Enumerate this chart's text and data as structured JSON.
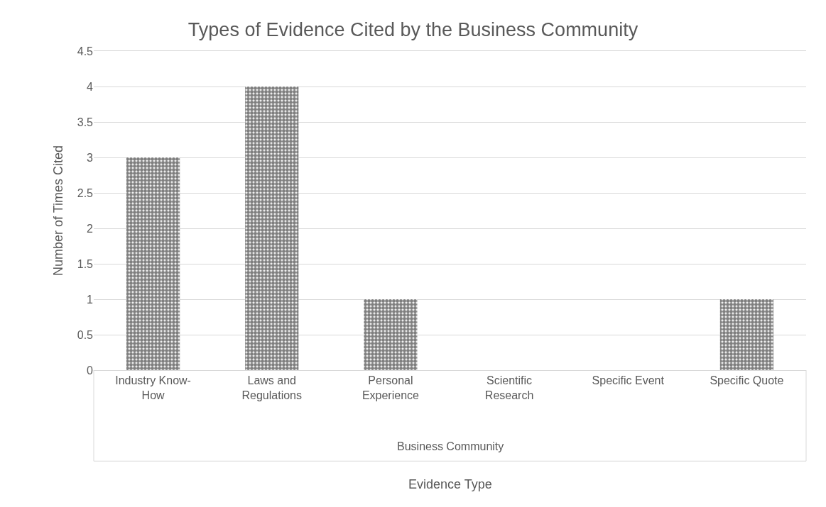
{
  "chart_data": {
    "type": "bar",
    "title": "Types of Evidence Cited by the Business Community",
    "ylabel": "Number of Times Cited",
    "categories": [
      "Industry Know-How",
      "Laws and Regulations",
      "Personal Experience",
      "Scientific Research",
      "Specific Event",
      "Specific Quote"
    ],
    "values": [
      3,
      4,
      1,
      0,
      0,
      1
    ],
    "color": "#000000",
    "ylim": [
      0,
      4.5
    ],
    "yticks": [
      0,
      0.5,
      1,
      1.5,
      2,
      2.5,
      3,
      3.5,
      4,
      4.5
    ],
    "annotations": [
      "Business Community",
      "Evidence Type"
    ],
    "grid": "y"
  }
}
